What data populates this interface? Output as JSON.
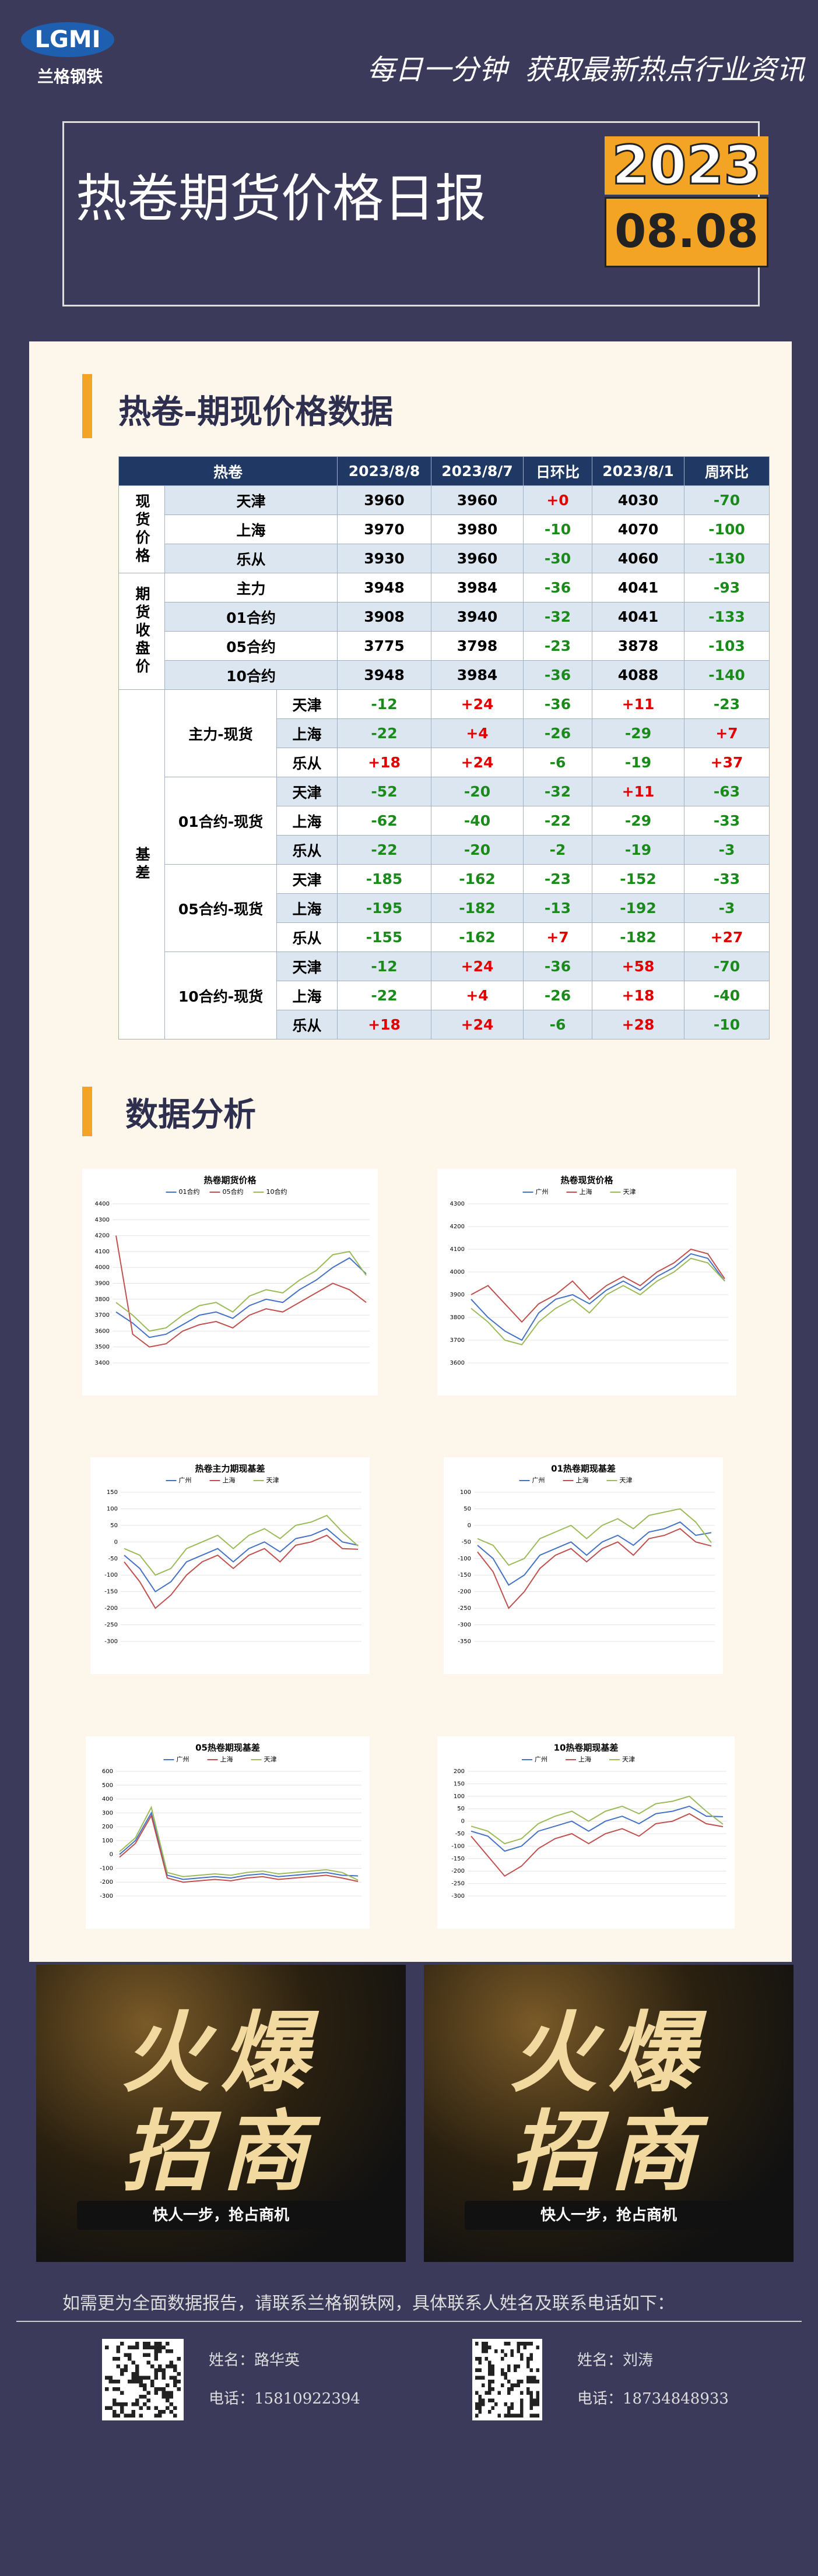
{
  "header": {
    "logo": "LGMI",
    "brand": "兰格钢铁",
    "slogan": "每日一分钟  获取最新热点行业资讯",
    "title": "热卷期货价格日报",
    "year": "2023",
    "date": "08.08"
  },
  "section1": "热卷-期现价格数据",
  "table": {
    "header": [
      "热卷",
      "2023/8/8",
      "2023/8/7",
      "日环比",
      "2023/8/1",
      "周环比"
    ],
    "groups": [
      {
        "label": "现货价格",
        "rows": [
          [
            "天津",
            "3960",
            "3960",
            "+0",
            "4030",
            "-70"
          ],
          [
            "上海",
            "3970",
            "3980",
            "-10",
            "4070",
            "-100"
          ],
          [
            "乐从",
            "3930",
            "3960",
            "-30",
            "4060",
            "-130"
          ]
        ]
      },
      {
        "label": "期货收盘价",
        "rows": [
          [
            "主力",
            "3948",
            "3984",
            "-36",
            "4041",
            "-93"
          ],
          [
            "01合约",
            "3908",
            "3940",
            "-32",
            "4041",
            "-133"
          ],
          [
            "05合约",
            "3775",
            "3798",
            "-23",
            "3878",
            "-103"
          ],
          [
            "10合约",
            "3948",
            "3984",
            "-36",
            "4088",
            "-140"
          ]
        ]
      },
      {
        "label": "基差",
        "subgroups": [
          {
            "label": "主力-现货",
            "rows": [
              [
                "天津",
                "-12",
                "+24",
                "-36",
                "+11",
                "-23"
              ],
              [
                "上海",
                "-22",
                "+4",
                "-26",
                "-29",
                "+7"
              ],
              [
                "乐从",
                "+18",
                "+24",
                "-6",
                "-19",
                "+37"
              ]
            ]
          },
          {
            "label": "01合约-现货",
            "rows": [
              [
                "天津",
                "-52",
                "-20",
                "-32",
                "+11",
                "-63"
              ],
              [
                "上海",
                "-62",
                "-40",
                "-22",
                "-29",
                "-33"
              ],
              [
                "乐从",
                "-22",
                "-20",
                "-2",
                "-19",
                "-3"
              ]
            ]
          },
          {
            "label": "05合约-现货",
            "rows": [
              [
                "天津",
                "-185",
                "-162",
                "-23",
                "-152",
                "-33"
              ],
              [
                "上海",
                "-195",
                "-182",
                "-13",
                "-192",
                "-3"
              ],
              [
                "乐从",
                "-155",
                "-162",
                "+7",
                "-182",
                "+27"
              ]
            ]
          },
          {
            "label": "10合约-现货",
            "rows": [
              [
                "天津",
                "-12",
                "+24",
                "-36",
                "+58",
                "-70"
              ],
              [
                "上海",
                "-22",
                "+4",
                "-26",
                "+18",
                "-40"
              ],
              [
                "乐从",
                "+18",
                "+24",
                "-6",
                "+28",
                "-10"
              ]
            ]
          }
        ]
      }
    ]
  },
  "section2": "数据分析",
  "charts": [
    {
      "type": "line",
      "title": "热卷期货价格",
      "ylim": [
        3400,
        4400
      ],
      "yticks": [
        3400,
        3500,
        3600,
        3700,
        3800,
        3900,
        4000,
        4100,
        4200,
        4300,
        4400
      ],
      "series": [
        {
          "name": "01合约",
          "color": "#4472c4",
          "values": [
            3720,
            3650,
            3560,
            3580,
            3640,
            3700,
            3720,
            3680,
            3760,
            3800,
            3780,
            3860,
            3920,
            4000,
            4060,
            3960
          ]
        },
        {
          "name": "05合约",
          "color": "#c0504d",
          "values": [
            4200,
            3580,
            3500,
            3520,
            3600,
            3640,
            3660,
            3620,
            3700,
            3740,
            3720,
            3780,
            3840,
            3900,
            3860,
            3780
          ]
        },
        {
          "name": "10合约",
          "color": "#9bbb59",
          "values": [
            3780,
            3700,
            3600,
            3620,
            3700,
            3760,
            3780,
            3720,
            3820,
            3860,
            3840,
            3920,
            3980,
            4080,
            4100,
            3950
          ]
        }
      ]
    },
    {
      "type": "line",
      "title": "热卷现货价格",
      "ylim": [
        3600,
        4300
      ],
      "yticks": [
        3600,
        3700,
        3800,
        3900,
        4000,
        4100,
        4200,
        4300
      ],
      "series": [
        {
          "name": "广州",
          "color": "#4472c4",
          "values": [
            3880,
            3800,
            3740,
            3700,
            3820,
            3880,
            3900,
            3860,
            3920,
            3960,
            3920,
            3980,
            4020,
            4080,
            4060,
            3960
          ]
        },
        {
          "name": "上海",
          "color": "#c0504d",
          "values": [
            3900,
            3940,
            3860,
            3780,
            3860,
            3900,
            3960,
            3880,
            3940,
            3980,
            3940,
            4000,
            4040,
            4100,
            4080,
            3970
          ]
        },
        {
          "name": "天津",
          "color": "#9bbb59",
          "values": [
            3840,
            3780,
            3700,
            3680,
            3780,
            3840,
            3880,
            3820,
            3900,
            3940,
            3900,
            3960,
            4000,
            4060,
            4040,
            3960
          ]
        }
      ]
    },
    {
      "type": "line",
      "title": "热卷主力期现基差",
      "ylim": [
        -300,
        150
      ],
      "yticks": [
        -300,
        -250,
        -200,
        -150,
        -100,
        -50,
        0,
        50,
        100,
        150
      ],
      "series": [
        {
          "name": "广州",
          "color": "#4472c4",
          "values": [
            -40,
            -80,
            -150,
            -120,
            -60,
            -40,
            -20,
            -60,
            -20,
            0,
            -30,
            10,
            20,
            40,
            0,
            -10
          ]
        },
        {
          "name": "上海",
          "color": "#c0504d",
          "values": [
            -60,
            -120,
            -200,
            -160,
            -100,
            -60,
            -40,
            -80,
            -40,
            -20,
            -60,
            -10,
            0,
            20,
            -20,
            -22
          ]
        },
        {
          "name": "天津",
          "color": "#9bbb59",
          "values": [
            -20,
            -40,
            -100,
            -80,
            -20,
            0,
            20,
            -20,
            20,
            40,
            10,
            50,
            60,
            80,
            30,
            -12
          ]
        }
      ]
    },
    {
      "type": "line",
      "title": "01热卷期现基差",
      "ylim": [
        -350,
        100
      ],
      "yticks": [
        -350,
        -300,
        -250,
        -200,
        -150,
        -100,
        -50,
        0,
        50,
        100
      ],
      "series": [
        {
          "name": "广州",
          "color": "#4472c4",
          "values": [
            -60,
            -100,
            -180,
            -150,
            -90,
            -70,
            -50,
            -90,
            -50,
            -30,
            -60,
            -20,
            -10,
            10,
            -30,
            -22
          ]
        },
        {
          "name": "上海",
          "color": "#c0504d",
          "values": [
            -80,
            -140,
            -250,
            -200,
            -130,
            -90,
            -70,
            -110,
            -70,
            -50,
            -90,
            -40,
            -30,
            -10,
            -50,
            -62
          ]
        },
        {
          "name": "天津",
          "color": "#9bbb59",
          "values": [
            -40,
            -60,
            -120,
            -100,
            -40,
            -20,
            0,
            -40,
            0,
            20,
            -10,
            30,
            40,
            50,
            10,
            -52
          ]
        }
      ]
    },
    {
      "type": "line",
      "title": "05热卷期现基差",
      "ylim": [
        -300,
        600
      ],
      "yticks": [
        -300,
        -200,
        -100,
        0,
        100,
        200,
        300,
        400,
        500,
        600
      ],
      "series": [
        {
          "name": "广州",
          "color": "#4472c4",
          "values": [
            0,
            100,
            300,
            -150,
            -180,
            -170,
            -160,
            -170,
            -150,
            -140,
            -160,
            -150,
            -140,
            -130,
            -150,
            -155
          ]
        },
        {
          "name": "上海",
          "color": "#c0504d",
          "values": [
            -20,
            80,
            280,
            -170,
            -200,
            -190,
            -180,
            -190,
            -170,
            -160,
            -180,
            -170,
            -160,
            -150,
            -170,
            -195
          ]
        },
        {
          "name": "天津",
          "color": "#9bbb59",
          "values": [
            20,
            120,
            340,
            -130,
            -160,
            -150,
            -140,
            -150,
            -130,
            -120,
            -140,
            -130,
            -120,
            -110,
            -130,
            -185
          ]
        }
      ]
    },
    {
      "type": "line",
      "title": "10热卷期现基差",
      "ylim": [
        -300,
        200
      ],
      "yticks": [
        -300,
        -250,
        -200,
        -150,
        -100,
        -50,
        0,
        50,
        100,
        150,
        200
      ],
      "series": [
        {
          "name": "广州",
          "color": "#4472c4",
          "values": [
            -40,
            -60,
            -120,
            -100,
            -40,
            -20,
            0,
            -40,
            0,
            20,
            -10,
            30,
            40,
            60,
            20,
            18
          ]
        },
        {
          "name": "上海",
          "color": "#c0504d",
          "values": [
            -60,
            -140,
            -220,
            -180,
            -110,
            -70,
            -50,
            -90,
            -50,
            -30,
            -60,
            -10,
            0,
            30,
            -10,
            -22
          ]
        },
        {
          "name": "天津",
          "color": "#9bbb59",
          "values": [
            -20,
            -40,
            -90,
            -70,
            -10,
            20,
            40,
            0,
            40,
            60,
            30,
            70,
            80,
            100,
            40,
            -12
          ]
        }
      ]
    }
  ],
  "ads": [
    {
      "line1": "火爆",
      "line2": "招商",
      "slogan": "快人一步，抢占商机"
    },
    {
      "line1": "火爆",
      "line2": "招商",
      "slogan": "快人一步，抢占商机"
    }
  ],
  "footer": {
    "note": "如需更为全面数据报告，请联系兰格钢铁网，具体联系人姓名及联系电话如下：",
    "contacts": [
      {
        "name": "姓名：路华英",
        "phone": "电话：15810922394"
      },
      {
        "name": "姓名：刘涛",
        "phone": "电话：18734848933"
      }
    ]
  }
}
